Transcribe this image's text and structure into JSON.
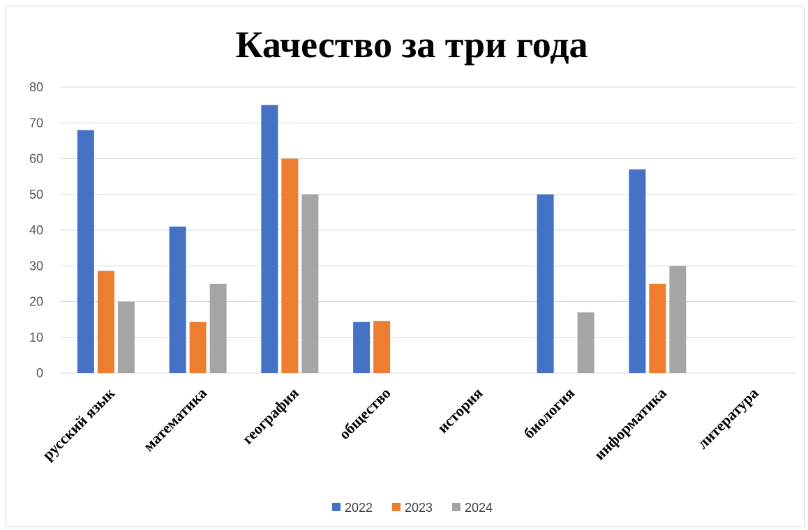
{
  "chart_data": {
    "type": "bar",
    "title": "Качество за три года",
    "xlabel": "",
    "ylabel": "",
    "ylim": [
      0,
      80
    ],
    "yticks": [
      0,
      10,
      20,
      30,
      40,
      50,
      60,
      70,
      80
    ],
    "grid": true,
    "legend_position": "bottom",
    "categories": [
      "русский язык",
      "математика",
      "география",
      "общество",
      "история",
      "биология",
      "информатика",
      "литература"
    ],
    "series": [
      {
        "name": "2022",
        "color": "#4472C4",
        "values": [
          68,
          41,
          75,
          14.3,
          null,
          50,
          57,
          null
        ]
      },
      {
        "name": "2023",
        "color": "#ED7D31",
        "values": [
          28.6,
          14.3,
          60,
          14.6,
          null,
          null,
          25,
          null
        ]
      },
      {
        "name": "2024",
        "color": "#A5A5A5",
        "values": [
          20,
          25,
          50,
          null,
          null,
          17,
          30,
          null
        ]
      }
    ]
  }
}
